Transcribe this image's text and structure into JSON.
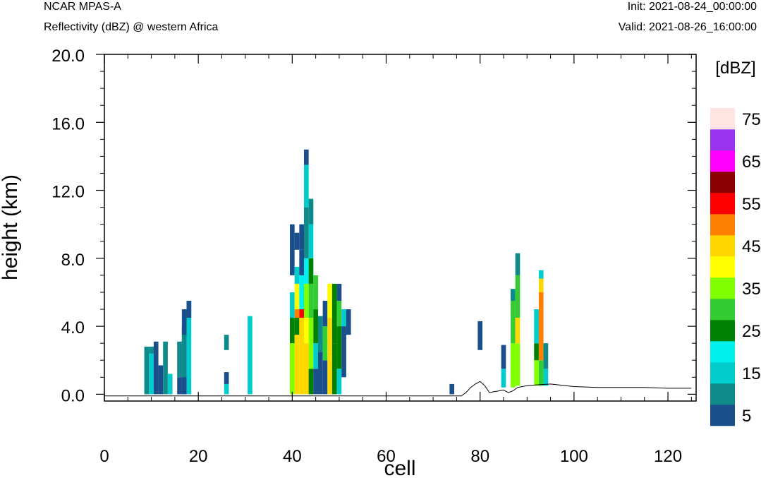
{
  "header": {
    "title_left": "NCAR MPAS-A",
    "subtitle_left": "Reflectivity (dBZ) @ western Africa",
    "title_right": "Init: 2021-08-24_00:00:00",
    "subtitle_right": "Valid: 2021-08-26_16:00:00"
  },
  "chart_data": {
    "type": "heatmap",
    "title": "Reflectivity (dBZ) @ western Africa",
    "xlabel": "cell",
    "ylabel": "height (km)",
    "xlim": [
      0,
      126
    ],
    "ylim": [
      -0.4,
      20.0
    ],
    "x_ticks": [
      0,
      20,
      40,
      60,
      80,
      100,
      120
    ],
    "x_tick_labels": [
      "0",
      "20",
      "40",
      "60",
      "80",
      "100",
      "120"
    ],
    "y_ticks": [
      0,
      4,
      8,
      12,
      16,
      20
    ],
    "y_tick_labels": [
      "0.0",
      "4.0",
      "8.0",
      "12.0",
      "16.0",
      "20.0"
    ],
    "colorbar": {
      "unit_label": "[dBZ]",
      "levels": [
        5,
        10,
        15,
        20,
        25,
        30,
        35,
        40,
        45,
        50,
        55,
        60,
        65,
        70,
        75
      ],
      "labeled_levels": [
        "75",
        "65",
        "55",
        "45",
        "35",
        "25",
        "15",
        "5"
      ],
      "colors": [
        "#1a4f8c",
        "#0f8a8a",
        "#00cccc",
        "#00f0f0",
        "#008000",
        "#33cc33",
        "#80ff00",
        "#ffff00",
        "#ffd700",
        "#ff8000",
        "#ff0000",
        "#8b0000",
        "#ff00ff",
        "#9933ee",
        "#ffe4e1"
      ]
    },
    "columns": [
      {
        "x": 9,
        "cells": [
          [
            0.0,
            2.8,
            1
          ]
        ]
      },
      {
        "x": 10,
        "cells": [
          [
            0.0,
            2.8,
            2
          ],
          [
            2.4,
            2.8,
            1
          ]
        ]
      },
      {
        "x": 11,
        "cells": [
          [
            0.0,
            3.1,
            0
          ]
        ]
      },
      {
        "x": 12,
        "cells": [
          [
            0.0,
            1.7,
            0
          ]
        ]
      },
      {
        "x": 13,
        "cells": [
          [
            0.0,
            3.1,
            1
          ]
        ]
      },
      {
        "x": 14,
        "cells": [
          [
            0.0,
            1.2,
            2
          ]
        ]
      },
      {
        "x": 16,
        "cells": [
          [
            0.0,
            1.0,
            0
          ],
          [
            1.0,
            3.1,
            1
          ]
        ]
      },
      {
        "x": 17,
        "cells": [
          [
            0.0,
            4.0,
            0
          ],
          [
            0.0,
            1.0,
            0
          ],
          [
            1.0,
            3.5,
            1
          ],
          [
            3.5,
            5.0,
            0
          ]
        ]
      },
      {
        "x": 18,
        "cells": [
          [
            0.0,
            5.5,
            2
          ],
          [
            4.5,
            5.5,
            0
          ]
        ]
      },
      {
        "x": 26,
        "cells": [
          [
            0.0,
            0.6,
            2
          ],
          [
            0.6,
            1.3,
            0
          ],
          [
            2.6,
            3.5,
            1
          ]
        ]
      },
      {
        "x": 31,
        "cells": [
          [
            0.0,
            4.6,
            2
          ]
        ]
      },
      {
        "x": 40,
        "cells": [
          [
            0.0,
            3.0,
            6
          ],
          [
            3.0,
            4.5,
            4
          ],
          [
            4.5,
            5.5,
            2
          ],
          [
            5.5,
            6.0,
            2
          ],
          [
            7.0,
            10.0,
            0
          ]
        ]
      },
      {
        "x": 41,
        "cells": [
          [
            0.0,
            3.5,
            8
          ],
          [
            3.5,
            4.5,
            4
          ],
          [
            4.5,
            5.0,
            9
          ],
          [
            5.0,
            6.5,
            7
          ],
          [
            6.5,
            7.5,
            2
          ],
          [
            8.5,
            9.5,
            0
          ]
        ]
      },
      {
        "x": 42,
        "cells": [
          [
            0.0,
            4.5,
            8
          ],
          [
            4.5,
            5.0,
            10
          ],
          [
            5.0,
            7.0,
            3
          ],
          [
            7.0,
            8.5,
            0
          ],
          [
            8.5,
            10.0,
            0
          ]
        ]
      },
      {
        "x": 43,
        "cells": [
          [
            0.0,
            3.0,
            8
          ],
          [
            3.0,
            4.5,
            7
          ],
          [
            4.5,
            6.5,
            6
          ],
          [
            6.5,
            8.0,
            3
          ],
          [
            8.0,
            11.0,
            1
          ],
          [
            11.0,
            13.5,
            2
          ],
          [
            13.5,
            14.4,
            0
          ]
        ]
      },
      {
        "x": 44,
        "cells": [
          [
            0.0,
            1.5,
            4
          ],
          [
            1.5,
            4.5,
            6
          ],
          [
            4.5,
            6.5,
            5
          ],
          [
            6.5,
            8.0,
            4
          ],
          [
            8.0,
            10.0,
            2
          ],
          [
            10.0,
            11.5,
            1
          ]
        ]
      },
      {
        "x": 45,
        "cells": [
          [
            0.0,
            1.5,
            0
          ],
          [
            1.5,
            3.0,
            2
          ],
          [
            3.0,
            5.0,
            4
          ],
          [
            5.0,
            7.0,
            5
          ]
        ]
      },
      {
        "x": 46,
        "cells": [
          [
            0.0,
            2.5,
            0
          ],
          [
            2.5,
            4.6,
            1
          ]
        ]
      },
      {
        "x": 47,
        "cells": [
          [
            0.0,
            2.0,
            0
          ],
          [
            2.0,
            4.0,
            5
          ],
          [
            4.0,
            5.5,
            0
          ]
        ]
      },
      {
        "x": 48,
        "cells": [
          [
            0.0,
            2.5,
            8
          ],
          [
            2.5,
            4.5,
            8
          ],
          [
            4.5,
            6.5,
            7
          ]
        ]
      },
      {
        "x": 49,
        "cells": [
          [
            0.0,
            3.0,
            4
          ],
          [
            3.0,
            6.5,
            4
          ]
        ]
      },
      {
        "x": 50,
        "cells": [
          [
            0.0,
            1.5,
            2
          ],
          [
            1.5,
            4.0,
            4
          ],
          [
            4.0,
            5.5,
            5
          ],
          [
            5.5,
            6.5,
            0
          ]
        ]
      },
      {
        "x": 51,
        "cells": [
          [
            1.0,
            4.0,
            0
          ],
          [
            4.0,
            5.0,
            2
          ]
        ]
      },
      {
        "x": 52,
        "cells": [
          [
            3.5,
            5.0,
            0
          ]
        ]
      },
      {
        "x": 74,
        "cells": [
          [
            0.0,
            0.6,
            0
          ]
        ]
      },
      {
        "x": 80,
        "cells": [
          [
            2.6,
            4.3,
            0
          ]
        ]
      },
      {
        "x": 85,
        "cells": [
          [
            0.4,
            1.5,
            2
          ],
          [
            1.5,
            2.9,
            0
          ]
        ]
      },
      {
        "x": 87,
        "cells": [
          [
            0.4,
            3.0,
            6
          ],
          [
            3.0,
            5.5,
            5
          ],
          [
            5.5,
            6.2,
            1
          ]
        ]
      },
      {
        "x": 88,
        "cells": [
          [
            0.5,
            3.0,
            6
          ],
          [
            3.0,
            4.5,
            8
          ],
          [
            4.5,
            7.0,
            5
          ],
          [
            7.0,
            8.3,
            1
          ]
        ]
      },
      {
        "x": 92,
        "cells": [
          [
            0.5,
            2.0,
            6
          ],
          [
            2.0,
            3.0,
            4
          ],
          [
            3.0,
            5.0,
            2
          ]
        ]
      },
      {
        "x": 93,
        "cells": [
          [
            0.5,
            2.0,
            5
          ],
          [
            2.0,
            6.0,
            9
          ],
          [
            6.0,
            6.8,
            8
          ],
          [
            6.8,
            7.3,
            2
          ]
        ]
      },
      {
        "x": 94,
        "cells": [
          [
            0.5,
            1.5,
            2
          ],
          [
            1.5,
            3.0,
            1
          ]
        ]
      }
    ],
    "terrain": {
      "x": [
        0,
        76,
        77,
        78,
        79,
        80,
        81,
        82,
        83,
        84,
        85,
        86,
        87,
        88,
        89,
        90,
        92,
        95,
        100,
        105,
        110,
        115,
        120,
        125
      ],
      "y": [
        -0.1,
        -0.1,
        0.1,
        0.4,
        0.6,
        0.75,
        0.5,
        0.1,
        0.15,
        0.2,
        0.25,
        0.1,
        0.2,
        0.4,
        0.45,
        0.5,
        0.55,
        0.6,
        0.45,
        0.4,
        0.4,
        0.4,
        0.35,
        0.35
      ]
    }
  }
}
